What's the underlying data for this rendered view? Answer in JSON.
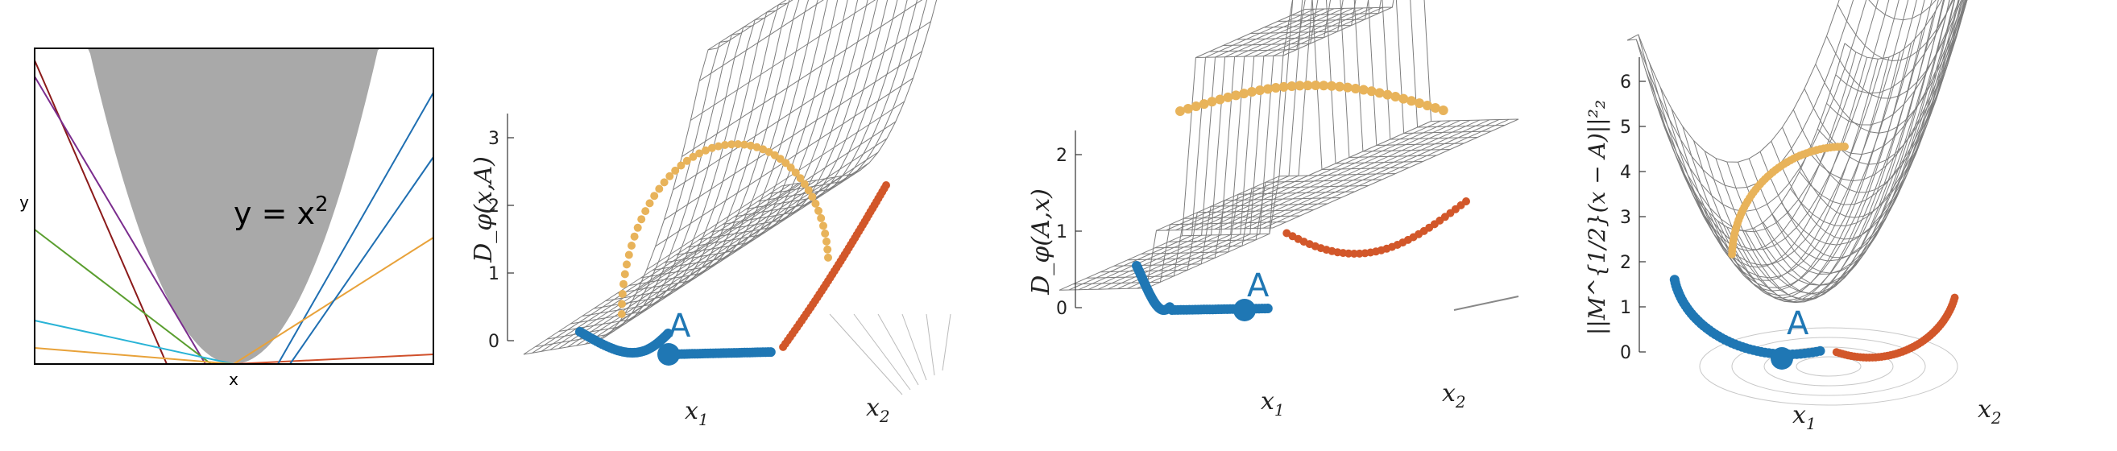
{
  "figure": {
    "panels": [
      {
        "id": "p1",
        "kind": "2d",
        "xlabel": "x",
        "ylabel": "y",
        "annotation": "y = x",
        "annotation_sup": "2"
      },
      {
        "id": "p2",
        "kind": "3d",
        "zlabel": "D_φ(x,A)",
        "xlabel": "x",
        "xlabel_sub": "1",
        "ylabel": "x",
        "ylabel_sub": "2",
        "point_label": "A"
      },
      {
        "id": "p3",
        "kind": "3d",
        "zlabel": "D_φ(A,x)",
        "xlabel": "x",
        "xlabel_sub": "1",
        "ylabel": "x",
        "ylabel_sub": "2",
        "point_label": "A"
      },
      {
        "id": "p4",
        "kind": "3d",
        "zlabel": "||M^{1/2}(x − A)||²₂",
        "xlabel": "x",
        "xlabel_sub": "1",
        "ylabel": "x",
        "ylabel_sub": "2",
        "point_label": "A"
      }
    ]
  },
  "chart_data": [
    {
      "type": "line",
      "title": "",
      "xlabel": "x",
      "ylabel": "y",
      "annotation": "y = x^2",
      "region_fill": "#aaaaaa",
      "series": [
        {
          "kind": "tangent_line",
          "color": "#8b1a1a"
        },
        {
          "kind": "tangent_line",
          "color": "#7b2d8e"
        },
        {
          "kind": "tangent_line",
          "color": "#5a9e2f"
        },
        {
          "kind": "tangent_line",
          "color": "#29b3d6"
        },
        {
          "kind": "tangent_line",
          "color": "#e8a23a"
        },
        {
          "kind": "tangent_line",
          "color": "#d0502b"
        },
        {
          "kind": "tangent_line",
          "color": "#1f6fb2"
        }
      ]
    },
    {
      "type": "surface",
      "zlabel": "D_φ(x,A)",
      "zticks": [
        0,
        1,
        2,
        3
      ],
      "point": "A",
      "path_colors": [
        "#1f77b4",
        "#e8b35a",
        "#d2572a"
      ]
    },
    {
      "type": "surface",
      "zlabel": "D_φ(A,x)",
      "zticks": [
        0,
        1,
        2
      ],
      "point": "A",
      "path_colors": [
        "#1f77b4",
        "#e8b35a",
        "#d2572a"
      ]
    },
    {
      "type": "surface",
      "zlabel": "||M^{1/2}(x − A)||²₂",
      "zticks": [
        0,
        1,
        2,
        3,
        4,
        5,
        6
      ],
      "point": "A",
      "path_colors": [
        "#1f77b4",
        "#e8b35a",
        "#d2572a"
      ]
    }
  ]
}
